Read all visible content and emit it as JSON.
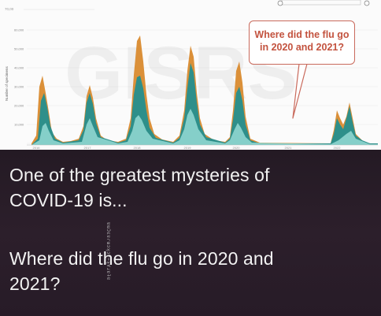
{
  "chart": {
    "top_value_label": "70,00",
    "y_axis_title": "Number of specimens",
    "watermark_text": "GISRS",
    "callout_lines": [
      "Where did the flu go",
      "in 2020 and 2021?"
    ],
    "colors": {
      "orange": "#d98a2e",
      "teal": "#2e8f8a",
      "light_teal": "#8fd6cf",
      "callout_border": "#c96a5c",
      "callout_text": "#c3533f"
    }
  },
  "chart_data": {
    "type": "area",
    "title": "",
    "ylabel": "Number of specimens",
    "xlabel": "",
    "y_ticks": [
      "10,000",
      "20,000",
      "30,000",
      "40,000",
      "50,000",
      "60,000",
      "70,00"
    ],
    "x_ticks": [
      "2016",
      "2017",
      "2018",
      "2019",
      "2020",
      "2021",
      "2022"
    ],
    "ylim": [
      0,
      70000
    ],
    "grid": true
  },
  "caption": {
    "lines": [
      "One of the greatest mysteries of",
      "COVID-19 is...",
      "Where did the flu go in 2020 and",
      "2021?"
    ],
    "vertical_watermark": "ɐɯƆɛɐɾɯɔʞɔɐ≈ʞ∀ɹɐʇɐ"
  }
}
